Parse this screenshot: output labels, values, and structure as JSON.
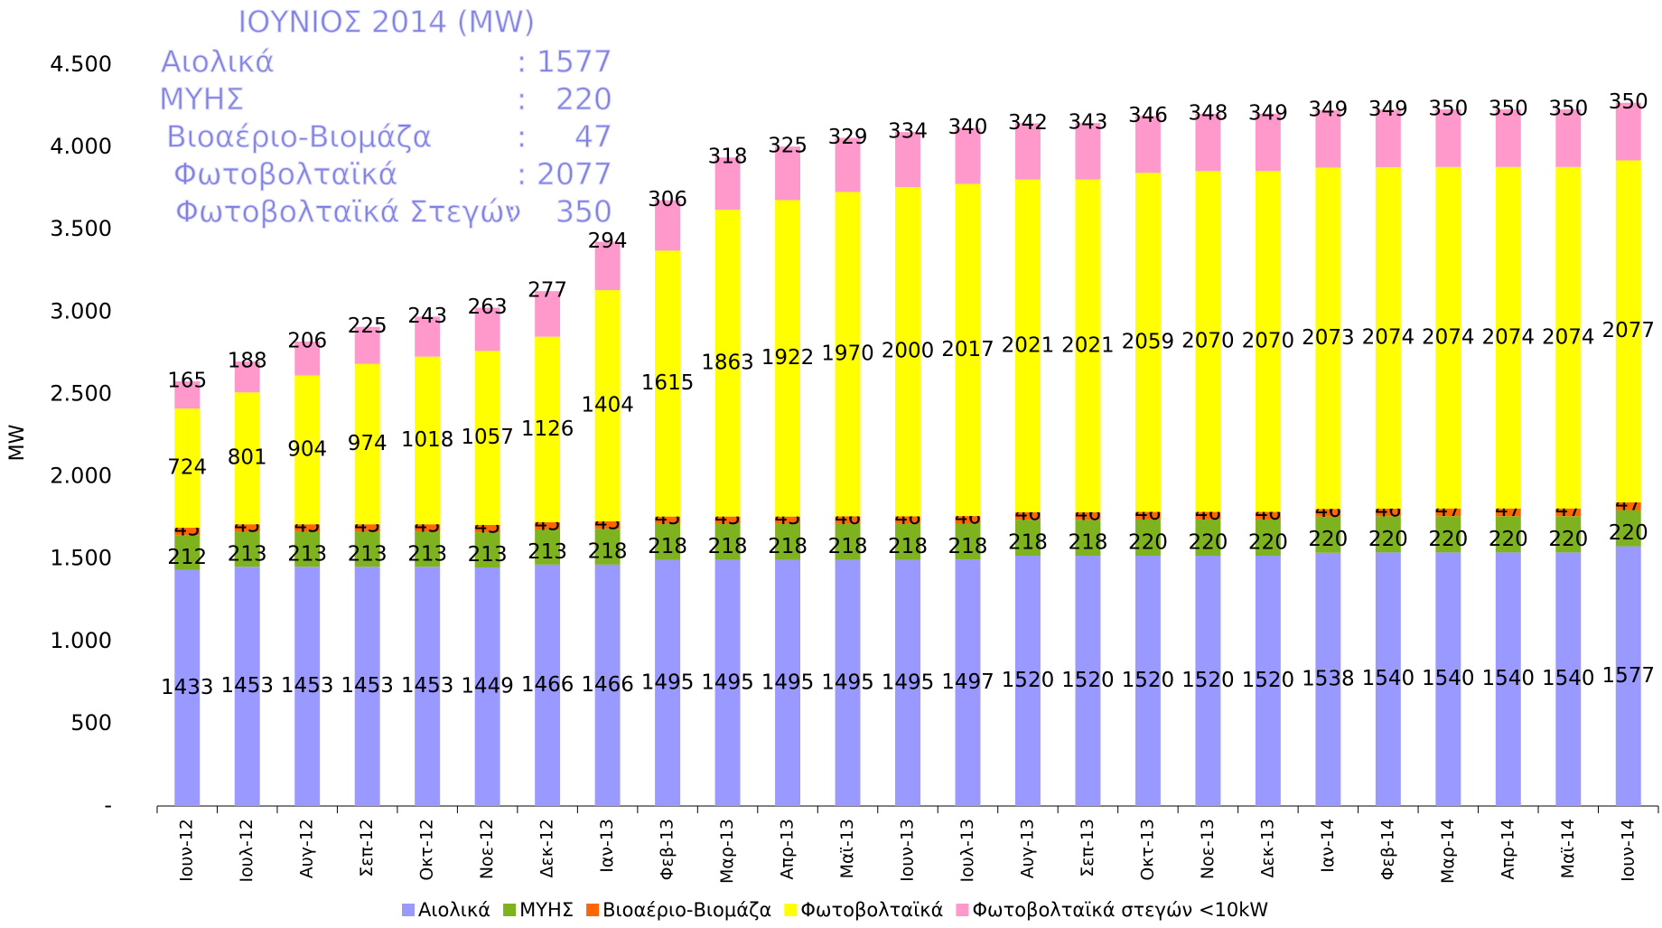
{
  "chart_data": {
    "type": "stacked_bar",
    "y_label": "MW",
    "annotation": {
      "title": "ΙΟΥΝΙΟΣ 2014 (MW)",
      "separator": ":",
      "items": [
        {
          "label": "Αιολικά",
          "value": 1577
        },
        {
          "label": "ΜΥΗΣ",
          "value": 220
        },
        {
          "label": "Βιοαέριο-Βιομάζα",
          "value": 47
        },
        {
          "label": "Φωτοβολταϊκά",
          "value": 2077
        },
        {
          "label": "Φωτοβολταϊκά Στεγών",
          "value": 350
        }
      ]
    },
    "categories": [
      "Ιουν-12",
      "Ιουλ-12",
      "Αυγ-12",
      "Σεπ-12",
      "Οκτ-12",
      "Νοε-12",
      "Δεκ-12",
      "Ιαν-13",
      "Φεβ-13",
      "Μαρ-13",
      "Απρ-13",
      "Μαϊ-13",
      "Ιουν-13",
      "Ιουλ-13",
      "Αυγ-13",
      "Σεπ-13",
      "Οκτ-13",
      "Νοε-13",
      "Δεκ-13",
      "Ιαν-14",
      "Φεβ-14",
      "Μαρ-14",
      "Απρ-14",
      "Μαϊ-14",
      "Ιουν-14"
    ],
    "series": [
      {
        "name": "Αιολικά",
        "color": "#9999ff",
        "values": [
          1433,
          1453,
          1453,
          1453,
          1453,
          1449,
          1466,
          1466,
          1495,
          1495,
          1495,
          1495,
          1495,
          1497,
          1520,
          1520,
          1520,
          1520,
          1520,
          1538,
          1540,
          1540,
          1540,
          1540,
          1577
        ]
      },
      {
        "name": "ΜΥΗΣ",
        "color": "#7fb21f",
        "values": [
          212,
          213,
          213,
          213,
          213,
          213,
          213,
          218,
          218,
          218,
          218,
          218,
          218,
          218,
          218,
          218,
          220,
          220,
          220,
          220,
          220,
          220,
          220,
          220,
          220
        ]
      },
      {
        "name": "Βιοαέριο-Βιομάζα",
        "color": "#ff6600",
        "values": [
          45,
          45,
          45,
          45,
          45,
          45,
          45,
          45,
          45,
          45,
          45,
          46,
          46,
          46,
          46,
          46,
          46,
          46,
          46,
          46,
          46,
          47,
          47,
          47,
          47
        ]
      },
      {
        "name": "Φωτοβολταϊκά",
        "color": "#ffff00",
        "values": [
          724,
          801,
          904,
          974,
          1018,
          1057,
          1126,
          1404,
          1615,
          1863,
          1922,
          1970,
          2000,
          2017,
          2021,
          2021,
          2059,
          2070,
          2070,
          2073,
          2074,
          2074,
          2074,
          2074,
          2077
        ]
      },
      {
        "name": "Φωτοβολταϊκά στεγών <10kW",
        "color": "#ff99cc",
        "values": [
          165,
          188,
          206,
          225,
          243,
          263,
          277,
          294,
          306,
          318,
          325,
          329,
          334,
          340,
          342,
          343,
          346,
          348,
          349,
          349,
          349,
          350,
          350,
          350,
          350
        ]
      }
    ],
    "ylim": [
      0,
      4500
    ],
    "yticks": [
      {
        "value": 0,
        "label": "-"
      },
      500,
      {
        "value": 1000,
        "label": "1.000"
      },
      {
        "value": 1500,
        "label": "1.500"
      },
      {
        "value": 2000,
        "label": "2.000"
      },
      {
        "value": 2500,
        "label": "2.500"
      },
      {
        "value": 3000,
        "label": "3.000"
      },
      {
        "value": 3500,
        "label": "3.500"
      },
      {
        "value": 4000,
        "label": "4.000"
      },
      {
        "value": 4500,
        "label": "4.500"
      }
    ],
    "grid": false,
    "legend": "bottom"
  }
}
